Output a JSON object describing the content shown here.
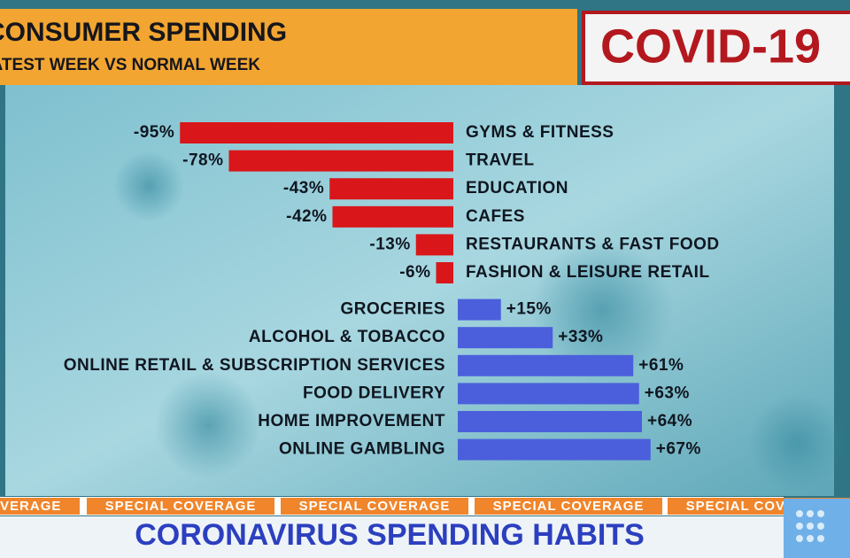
{
  "header": {
    "title": "CONSUMER SPENDING",
    "subtitle": "LATEST WEEK VS NORMAL WEEK",
    "badge": "COVID-19"
  },
  "chart_data": {
    "type": "bar",
    "categories": [
      "GYMS & FITNESS",
      "TRAVEL",
      "EDUCATION",
      "CAFES",
      "RESTAURANTS & FAST FOOD",
      "FASHION & LEISURE RETAIL",
      "GROCERIES",
      "ALCOHOL & TOBACCO",
      "ONLINE RETAIL & SUBSCRIPTION SERVICES",
      "FOOD DELIVERY",
      "HOME IMPROVEMENT",
      "ONLINE GAMBLING"
    ],
    "values": [
      -95,
      -78,
      -43,
      -42,
      -13,
      -6,
      15,
      33,
      61,
      63,
      64,
      67
    ],
    "value_labels": [
      "-95%",
      "-78%",
      "-43%",
      "-42%",
      "-13%",
      "-6%",
      "+15%",
      "+33%",
      "+61%",
      "+63%",
      "+64%",
      "+67%"
    ],
    "negative_color": "#d9161a",
    "positive_color": "#4b5fdc"
  },
  "ticker": "SPECIAL COVERAGE",
  "banner": "CORONAVIRUS SPENDING HABITS"
}
